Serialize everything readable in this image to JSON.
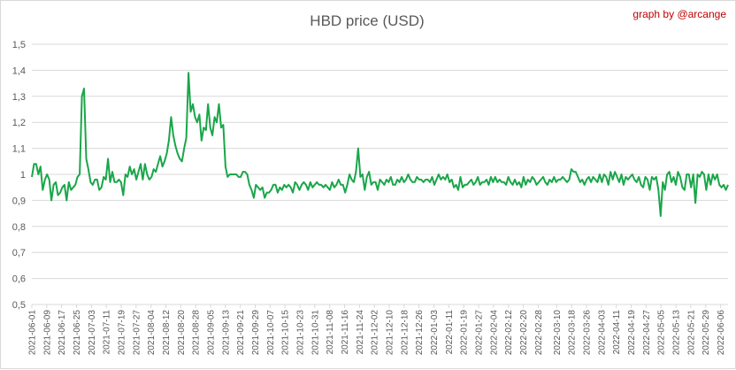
{
  "chart_data": {
    "type": "line",
    "title": "HBD price (USD)",
    "credit": "graph by @arcange",
    "xlabel": "",
    "ylabel": "",
    "ylim": [
      0.5,
      1.5
    ],
    "yticks": [
      0.5,
      0.6,
      0.7,
      0.8,
      0.9,
      1.0,
      1.1,
      1.2,
      1.3,
      1.4,
      1.5
    ],
    "ytick_labels": [
      "0,5",
      "0,6",
      "0,7",
      "0,8",
      "0,9",
      "1",
      "1,1",
      "1,2",
      "1,3",
      "1,4",
      "1,5"
    ],
    "grid": true,
    "legend": "none",
    "line_color": "#1aa64a",
    "x_start": "2021-06-01",
    "x_end": "2022-06-10",
    "xtick_labels": [
      "2021-06-01",
      "2021-06-09",
      "2021-06-17",
      "2021-06-25",
      "2021-07-03",
      "2021-07-11",
      "2021-07-19",
      "2021-07-27",
      "2021-08-04",
      "2021-08-12",
      "2021-08-20",
      "2021-08-28",
      "2021-09-05",
      "2021-09-13",
      "2021-09-21",
      "2021-09-29",
      "2021-10-07",
      "2021-10-15",
      "2021-10-23",
      "2021-10-31",
      "2021-11-08",
      "2021-11-16",
      "2021-11-24",
      "2021-12-02",
      "2021-12-10",
      "2021-12-18",
      "2021-12-26",
      "2022-01-03",
      "2022-01-11",
      "2022-01-19",
      "2022-01-27",
      "2022-02-04",
      "2022-02-12",
      "2022-02-20",
      "2022-02-28",
      "2022-03-10",
      "2022-03-18",
      "2022-03-26",
      "2022-04-03",
      "2022-04-11",
      "2022-04-19",
      "2022-04-27",
      "2022-05-05",
      "2022-05-13",
      "2022-05-21",
      "2022-05-29",
      "2022-06-06"
    ],
    "series": [
      {
        "values": [
          0.99,
          1.04,
          1.04,
          1.0,
          1.03,
          0.94,
          0.98,
          1.0,
          0.98,
          0.9,
          0.96,
          0.97,
          0.92,
          0.93,
          0.95,
          0.96,
          0.9,
          0.97,
          0.94,
          0.95,
          0.96,
          0.99,
          1.0,
          1.3,
          1.33,
          1.06,
          1.02,
          0.97,
          0.96,
          0.98,
          0.98,
          0.94,
          0.95,
          0.99,
          0.98,
          1.06,
          0.97,
          1.01,
          0.97,
          0.97,
          0.98,
          0.97,
          0.92,
          1.0,
          0.99,
          1.03,
          1.0,
          1.02,
          0.98,
          1.01,
          1.04,
          0.98,
          1.04,
          1.0,
          0.98,
          0.99,
          1.02,
          1.01,
          1.04,
          1.07,
          1.03,
          1.05,
          1.08,
          1.13,
          1.22,
          1.15,
          1.11,
          1.08,
          1.06,
          1.05,
          1.1,
          1.14,
          1.39,
          1.24,
          1.27,
          1.22,
          1.2,
          1.23,
          1.13,
          1.18,
          1.17,
          1.27,
          1.18,
          1.15,
          1.22,
          1.2,
          1.27,
          1.18,
          1.19,
          1.03,
          0.99,
          1.0,
          1.0,
          1.0,
          1.0,
          0.99,
          0.99,
          1.01,
          1.01,
          1.0,
          0.96,
          0.94,
          0.91,
          0.96,
          0.95,
          0.94,
          0.95,
          0.91,
          0.93,
          0.93,
          0.94,
          0.96,
          0.96,
          0.93,
          0.95,
          0.94,
          0.96,
          0.95,
          0.96,
          0.95,
          0.93,
          0.97,
          0.96,
          0.94,
          0.96,
          0.97,
          0.96,
          0.94,
          0.97,
          0.95,
          0.96,
          0.97,
          0.96,
          0.96,
          0.95,
          0.96,
          0.95,
          0.94,
          0.97,
          0.95,
          0.96,
          0.98,
          0.96,
          0.96,
          0.93,
          0.96,
          1.0,
          0.98,
          0.97,
          1.01,
          1.1,
          0.99,
          1.0,
          0.94,
          0.99,
          1.01,
          0.96,
          0.97,
          0.97,
          0.94,
          0.98,
          0.97,
          0.96,
          0.98,
          0.97,
          0.99,
          0.96,
          0.96,
          0.98,
          0.97,
          0.99,
          0.97,
          0.98,
          1.0,
          0.98,
          0.97,
          0.97,
          0.99,
          0.98,
          0.98,
          0.97,
          0.98,
          0.98,
          0.97,
          0.99,
          0.96,
          0.98,
          1.0,
          0.98,
          0.99,
          0.98,
          1.0,
          0.97,
          0.98,
          0.95,
          0.96,
          0.94,
          0.99,
          0.95,
          0.96,
          0.96,
          0.97,
          0.98,
          0.96,
          0.97,
          0.99,
          0.96,
          0.97,
          0.97,
          0.98,
          0.96,
          0.99,
          0.97,
          0.99,
          0.97,
          0.98,
          0.97,
          0.97,
          0.96,
          0.99,
          0.97,
          0.96,
          0.98,
          0.96,
          0.97,
          0.95,
          0.99,
          0.96,
          0.98,
          0.97,
          0.99,
          0.98,
          0.96,
          0.97,
          0.98,
          0.99,
          0.97,
          0.96,
          0.98,
          0.97,
          0.99,
          0.97,
          0.98,
          0.98,
          0.99,
          0.98,
          0.97,
          0.98,
          1.02,
          1.01,
          1.01,
          0.99,
          0.97,
          0.98,
          0.96,
          0.98,
          0.99,
          0.97,
          0.99,
          0.98,
          0.97,
          1.0,
          0.97,
          1.0,
          0.99,
          0.96,
          1.01,
          0.98,
          1.01,
          0.99,
          0.97,
          1.0,
          0.96,
          0.99,
          0.98,
          0.99,
          1.0,
          0.98,
          0.97,
          0.99,
          0.96,
          0.95,
          0.99,
          0.98,
          0.94,
          0.99,
          0.98,
          0.99,
          0.94,
          0.84,
          0.97,
          0.94,
          1.0,
          1.01,
          0.97,
          0.99,
          0.96,
          1.01,
          0.99,
          0.95,
          0.94,
          1.0,
          1.0,
          0.95,
          1.0,
          0.89,
          1.0,
          0.99,
          1.01,
          1.0,
          0.94,
          1.0,
          0.96,
          1.0,
          0.98,
          1.0,
          0.96,
          0.95,
          0.96,
          0.94,
          0.96
        ]
      }
    ]
  }
}
